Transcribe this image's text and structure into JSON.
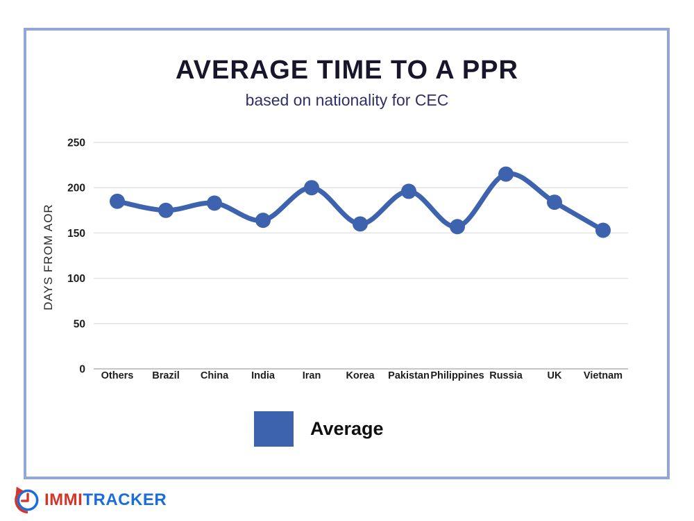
{
  "page": {
    "background": "#ffffff",
    "frame_border_color": "#91a7d6"
  },
  "header": {
    "title": "AVERAGE TIME TO A PPR",
    "subtitle": "based on nationality for CEC",
    "title_color": "#18162a",
    "subtitle_color": "#322e69"
  },
  "chart_data": {
    "type": "line",
    "title": "AVERAGE TIME TO A PPR",
    "subtitle": "based on nationality for CEC",
    "categories": [
      "Others",
      "Brazil",
      "China",
      "India",
      "Iran",
      "Korea",
      "Pakistan",
      "Philippines",
      "Russia",
      "UK",
      "Vietnam"
    ],
    "series": [
      {
        "name": "Average",
        "values": [
          185,
          175,
          183,
          164,
          200,
          160,
          196,
          157,
          215,
          184,
          153
        ]
      }
    ],
    "xlabel": "",
    "ylabel": "DAYS  FROM AOR",
    "ylim": [
      0,
      260
    ],
    "y_ticks": [
      0,
      50,
      100,
      150,
      200,
      250
    ],
    "grid": true,
    "legend_position": "bottom",
    "line_color": "#3d62ae",
    "marker": "circle",
    "smooth": true,
    "grid_color": "#e3e3e3",
    "baseline_color": "#c6c6c6",
    "tick_label_color": "#1d1d1d"
  },
  "legend": {
    "label": "Average",
    "swatch_color": "#3d62ae"
  },
  "footer_logo": {
    "text_primary": "IMMI",
    "text_secondary": "TRACKER",
    "primary_color": "#d63429",
    "secondary_color": "#1d6bdd"
  }
}
